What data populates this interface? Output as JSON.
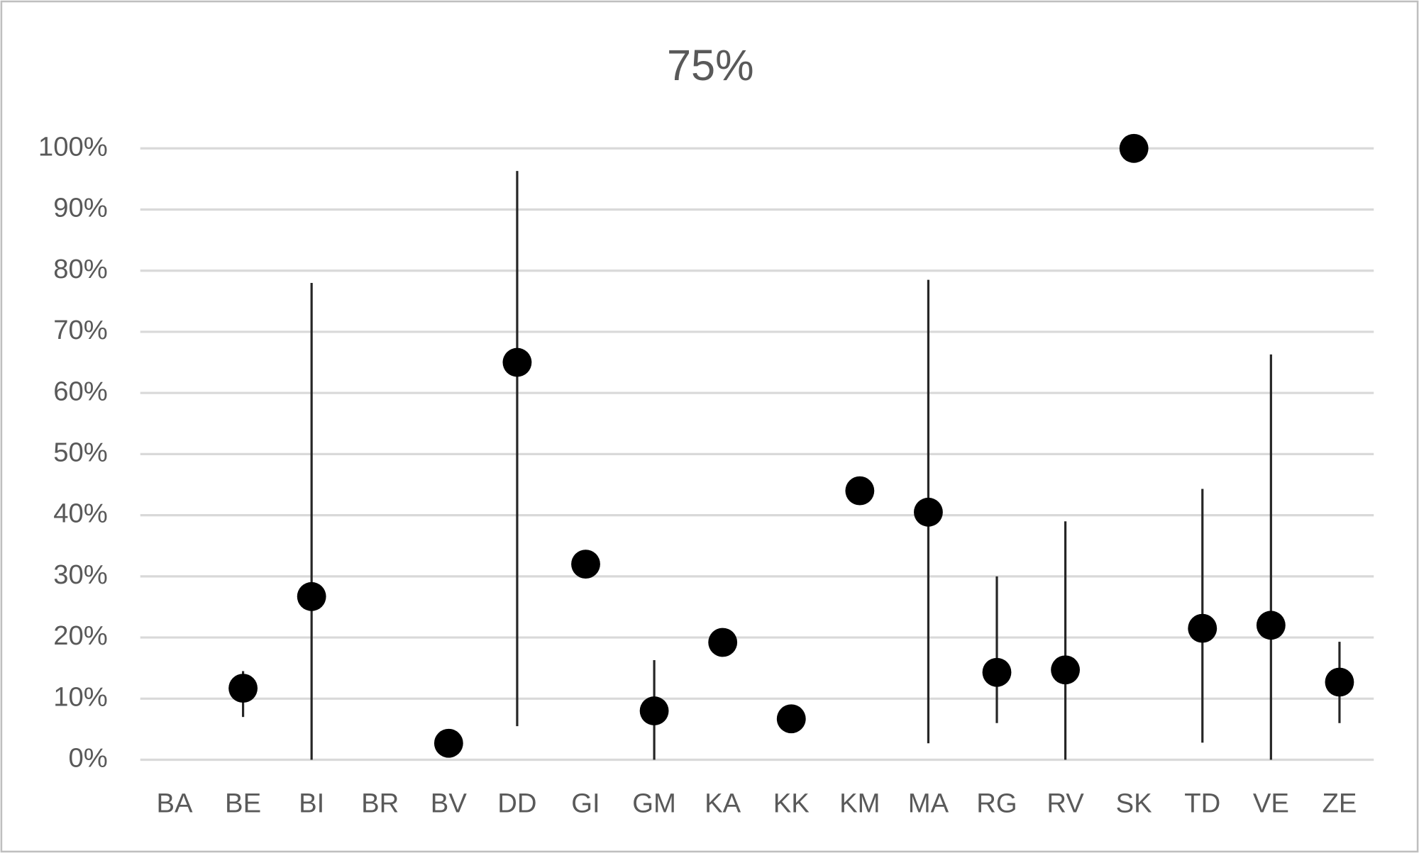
{
  "chart_data": {
    "type": "dot_errorbar",
    "title": "75%",
    "categories": [
      "BA",
      "BE",
      "BI",
      "BR",
      "BV",
      "DD",
      "GI",
      "GM",
      "KA",
      "KK",
      "KM",
      "MA",
      "RG",
      "RV",
      "SK",
      "TD",
      "VE",
      "ZE"
    ],
    "values": [
      null,
      11.7,
      26.7,
      null,
      2.7,
      65,
      32,
      8,
      19.2,
      6.7,
      44,
      40.5,
      14.3,
      14.7,
      100,
      21.5,
      22,
      12.7
    ],
    "error_minus": [
      null,
      4.7,
      26.7,
      null,
      null,
      59.5,
      null,
      8,
      null,
      null,
      null,
      37.8,
      8.3,
      14.7,
      null,
      18.7,
      22,
      6.7
    ],
    "error_plus": [
      null,
      2.8,
      51.3,
      null,
      null,
      31.3,
      null,
      8.3,
      null,
      null,
      null,
      38,
      15.7,
      24.3,
      null,
      22.8,
      44.3,
      6.6
    ],
    "color": "#000000",
    "ylim": [
      0,
      100
    ],
    "yticks": [
      {
        "value": 0,
        "label": "0%"
      },
      {
        "value": 10,
        "label": "10%"
      },
      {
        "value": 20,
        "label": "20%"
      },
      {
        "value": 30,
        "label": "30%"
      },
      {
        "value": 40,
        "label": "40%"
      },
      {
        "value": 50,
        "label": "50%"
      },
      {
        "value": 60,
        "label": "60%"
      },
      {
        "value": 70,
        "label": "70%"
      },
      {
        "value": 80,
        "label": "80%"
      },
      {
        "value": 90,
        "label": "90%"
      },
      {
        "value": 100,
        "label": "100%"
      }
    ],
    "grid": true
  }
}
